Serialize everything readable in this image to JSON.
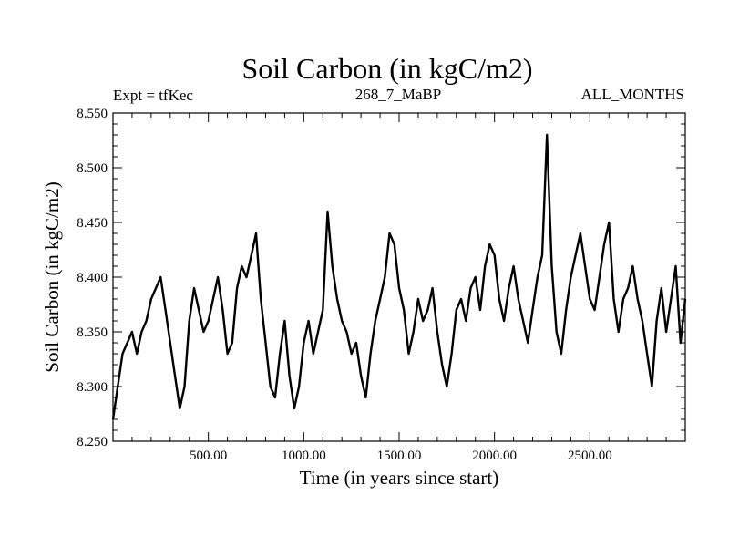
{
  "chart_data": {
    "type": "line",
    "title": "Soil Carbon (in kgC/m2)",
    "experiment_label": "Expt = tfKec",
    "run_label": "268_7_MaBP",
    "period_label": "ALL_MONTHS",
    "xlabel": "Time (in years since start)",
    "ylabel": "Soil Carbon (in kgC/m2)",
    "xlim": [
      0,
      3000
    ],
    "ylim": [
      8.25,
      8.55
    ],
    "x_ticks": [
      500,
      1000,
      1500,
      2000,
      2500
    ],
    "x_tick_labels": [
      "500.00",
      "1000.00",
      "1500.00",
      "2000.00",
      "2500.00"
    ],
    "y_ticks": [
      8.25,
      8.3,
      8.35,
      8.4,
      8.45,
      8.5,
      8.55
    ],
    "y_tick_labels": [
      "8.250",
      "8.300",
      "8.350",
      "8.400",
      "8.450",
      "8.500",
      "8.550"
    ],
    "grid": false,
    "line_color": "#000000",
    "series": [
      {
        "x": [
          0,
          25,
          50,
          75,
          100,
          125,
          150,
          175,
          200,
          225,
          250,
          275,
          300,
          325,
          350,
          375,
          400,
          425,
          450,
          475,
          500,
          525,
          550,
          575,
          600,
          625,
          650,
          675,
          700,
          725,
          750,
          775,
          800,
          825,
          850,
          875,
          900,
          925,
          950,
          975,
          1000,
          1025,
          1050,
          1075,
          1100,
          1125,
          1150,
          1175,
          1200,
          1225,
          1250,
          1275,
          1300,
          1325,
          1350,
          1375,
          1400,
          1425,
          1450,
          1475,
          1500,
          1525,
          1550,
          1575,
          1600,
          1625,
          1650,
          1675,
          1700,
          1725,
          1750,
          1775,
          1800,
          1825,
          1850,
          1875,
          1900,
          1925,
          1950,
          1975,
          2000,
          2025,
          2050,
          2075,
          2100,
          2125,
          2150,
          2175,
          2200,
          2225,
          2250,
          2275,
          2300,
          2325,
          2350,
          2375,
          2400,
          2425,
          2450,
          2475,
          2500,
          2525,
          2550,
          2575,
          2600,
          2625,
          2650,
          2675,
          2700,
          2725,
          2750,
          2775,
          2800,
          2825,
          2850,
          2875,
          2900,
          2925,
          2950,
          2975,
          3000
        ],
        "y": [
          8.27,
          8.3,
          8.33,
          8.34,
          8.35,
          8.33,
          8.35,
          8.36,
          8.38,
          8.39,
          8.4,
          8.37,
          8.34,
          8.31,
          8.28,
          8.3,
          8.36,
          8.39,
          8.37,
          8.35,
          8.36,
          8.38,
          8.4,
          8.37,
          8.33,
          8.34,
          8.39,
          8.41,
          8.4,
          8.42,
          8.44,
          8.38,
          8.34,
          8.3,
          8.29,
          8.33,
          8.36,
          8.31,
          8.28,
          8.3,
          8.34,
          8.36,
          8.33,
          8.35,
          8.37,
          8.46,
          8.41,
          8.38,
          8.36,
          8.35,
          8.33,
          8.34,
          8.31,
          8.29,
          8.33,
          8.36,
          8.38,
          8.4,
          8.44,
          8.43,
          8.39,
          8.37,
          8.33,
          8.35,
          8.38,
          8.36,
          8.37,
          8.39,
          8.35,
          8.32,
          8.3,
          8.33,
          8.37,
          8.38,
          8.36,
          8.39,
          8.4,
          8.37,
          8.41,
          8.43,
          8.42,
          8.38,
          8.36,
          8.39,
          8.41,
          8.38,
          8.36,
          8.34,
          8.37,
          8.4,
          8.42,
          8.53,
          8.41,
          8.35,
          8.33,
          8.37,
          8.4,
          8.42,
          8.44,
          8.41,
          8.38,
          8.37,
          8.4,
          8.43,
          8.45,
          8.38,
          8.35,
          8.38,
          8.39,
          8.41,
          8.38,
          8.36,
          8.33,
          8.3,
          8.36,
          8.39,
          8.35,
          8.38,
          8.41,
          8.34,
          8.38
        ]
      }
    ]
  }
}
